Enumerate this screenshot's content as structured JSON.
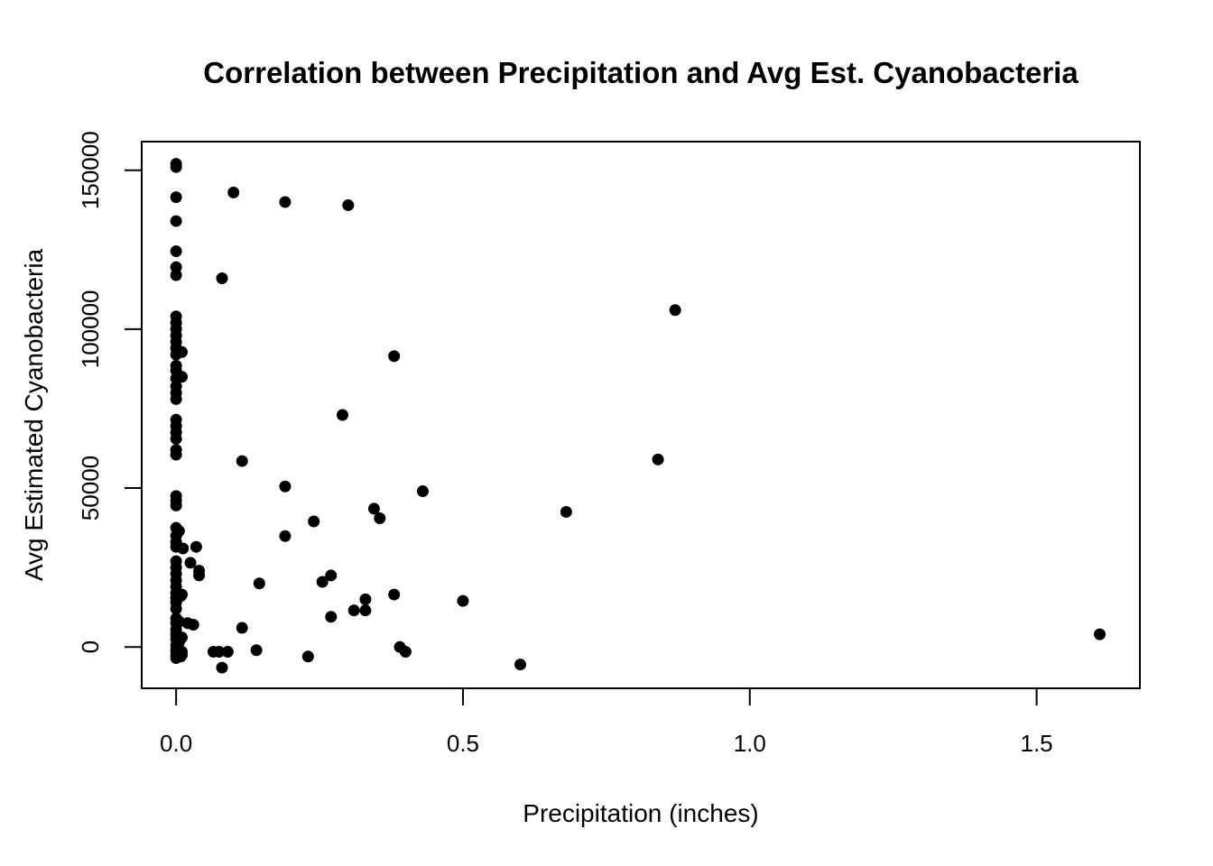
{
  "chart_data": {
    "type": "scatter",
    "title": "Correlation between Precipitation and Avg Est. Cyanobacteria",
    "xlabel": "Precipitation (inches)",
    "ylabel": "Avg Estimated Cyanobacteria",
    "xlim": [
      -0.06,
      1.68
    ],
    "ylim": [
      -13000,
      159000
    ],
    "xticks": [
      0.0,
      0.5,
      1.0,
      1.5
    ],
    "xtick_labels": [
      "0.0",
      "0.5",
      "1.0",
      "1.5"
    ],
    "yticks": [
      0,
      50000,
      100000,
      150000
    ],
    "ytick_labels": [
      "0",
      "50000",
      "100000",
      "150000"
    ],
    "grid": false,
    "legend": "none",
    "point_color": "#000000",
    "points": [
      {
        "x": 0.0,
        "y": 152000
      },
      {
        "x": 0.0,
        "y": 151000
      },
      {
        "x": 0.0,
        "y": 141500
      },
      {
        "x": 0.0,
        "y": 134000
      },
      {
        "x": 0.0,
        "y": 124500
      },
      {
        "x": 0.0,
        "y": 119500
      },
      {
        "x": 0.0,
        "y": 117000
      },
      {
        "x": 0.0,
        "y": 104000
      },
      {
        "x": 0.0,
        "y": 102000
      },
      {
        "x": 0.0,
        "y": 100000
      },
      {
        "x": 0.0,
        "y": 98000
      },
      {
        "x": 0.0,
        "y": 96000
      },
      {
        "x": 0.0,
        "y": 94000
      },
      {
        "x": 0.0,
        "y": 92000
      },
      {
        "x": 0.0,
        "y": 88500
      },
      {
        "x": 0.0,
        "y": 87000
      },
      {
        "x": 0.0,
        "y": 84500
      },
      {
        "x": 0.0,
        "y": 82000
      },
      {
        "x": 0.0,
        "y": 80000
      },
      {
        "x": 0.0,
        "y": 78000
      },
      {
        "x": 0.0,
        "y": 71500
      },
      {
        "x": 0.0,
        "y": 69500
      },
      {
        "x": 0.0,
        "y": 67500
      },
      {
        "x": 0.0,
        "y": 65500
      },
      {
        "x": 0.0,
        "y": 62000
      },
      {
        "x": 0.0,
        "y": 60500
      },
      {
        "x": 0.0,
        "y": 47500
      },
      {
        "x": 0.0,
        "y": 46000
      },
      {
        "x": 0.0,
        "y": 44500
      },
      {
        "x": 0.0,
        "y": 37500
      },
      {
        "x": 0.0,
        "y": 35000
      },
      {
        "x": 0.0,
        "y": 33000
      },
      {
        "x": 0.0,
        "y": 31500
      },
      {
        "x": 0.0,
        "y": 27000
      },
      {
        "x": 0.0,
        "y": 25000
      },
      {
        "x": 0.0,
        "y": 23000
      },
      {
        "x": 0.0,
        "y": 21000
      },
      {
        "x": 0.0,
        "y": 19000
      },
      {
        "x": 0.0,
        "y": 17000
      },
      {
        "x": 0.0,
        "y": 15500
      },
      {
        "x": 0.0,
        "y": 14000
      },
      {
        "x": 0.0,
        "y": 12000
      },
      {
        "x": 0.0,
        "y": 9000
      },
      {
        "x": 0.0,
        "y": 7500
      },
      {
        "x": 0.0,
        "y": 5500
      },
      {
        "x": 0.0,
        "y": 4000
      },
      {
        "x": 0.0,
        "y": 2500
      },
      {
        "x": 0.0,
        "y": 500
      },
      {
        "x": 0.0,
        "y": -1000
      },
      {
        "x": 0.0,
        "y": -2500
      },
      {
        "x": 0.0,
        "y": -3500
      },
      {
        "x": 0.005,
        "y": 36500
      },
      {
        "x": 0.005,
        "y": 8000
      },
      {
        "x": 0.005,
        "y": 1500
      },
      {
        "x": 0.005,
        "y": -2000
      },
      {
        "x": 0.008,
        "y": 16000
      },
      {
        "x": 0.008,
        "y": -3000
      },
      {
        "x": 0.01,
        "y": 92800
      },
      {
        "x": 0.01,
        "y": 85000
      },
      {
        "x": 0.01,
        "y": 16500
      },
      {
        "x": 0.01,
        "y": 3000
      },
      {
        "x": 0.01,
        "y": -1500
      },
      {
        "x": 0.01,
        "y": -2500
      },
      {
        "x": 0.012,
        "y": 31000
      },
      {
        "x": 0.02,
        "y": 7500
      },
      {
        "x": 0.025,
        "y": 26500
      },
      {
        "x": 0.03,
        "y": 7000
      },
      {
        "x": 0.035,
        "y": 31500
      },
      {
        "x": 0.04,
        "y": 24000
      },
      {
        "x": 0.04,
        "y": 22500
      },
      {
        "x": 0.065,
        "y": -1500
      },
      {
        "x": 0.075,
        "y": -1500
      },
      {
        "x": 0.08,
        "y": 116000
      },
      {
        "x": 0.08,
        "y": -6500
      },
      {
        "x": 0.09,
        "y": -1500
      },
      {
        "x": 0.1,
        "y": 143000
      },
      {
        "x": 0.115,
        "y": 6000
      },
      {
        "x": 0.115,
        "y": 58500
      },
      {
        "x": 0.14,
        "y": -1000
      },
      {
        "x": 0.145,
        "y": 20000
      },
      {
        "x": 0.19,
        "y": 34900
      },
      {
        "x": 0.19,
        "y": 50500
      },
      {
        "x": 0.19,
        "y": 140000
      },
      {
        "x": 0.23,
        "y": -3000
      },
      {
        "x": 0.24,
        "y": 39500
      },
      {
        "x": 0.255,
        "y": 20500
      },
      {
        "x": 0.27,
        "y": 22500
      },
      {
        "x": 0.27,
        "y": 9500
      },
      {
        "x": 0.29,
        "y": 73000
      },
      {
        "x": 0.3,
        "y": 139000
      },
      {
        "x": 0.31,
        "y": 11500
      },
      {
        "x": 0.33,
        "y": 11500
      },
      {
        "x": 0.33,
        "y": 15000
      },
      {
        "x": 0.345,
        "y": 43500
      },
      {
        "x": 0.355,
        "y": 40500
      },
      {
        "x": 0.38,
        "y": 91500
      },
      {
        "x": 0.38,
        "y": 16500
      },
      {
        "x": 0.39,
        "y": 0
      },
      {
        "x": 0.4,
        "y": -1500
      },
      {
        "x": 0.43,
        "y": 49000
      },
      {
        "x": 0.5,
        "y": 14500
      },
      {
        "x": 0.6,
        "y": -5500
      },
      {
        "x": 0.68,
        "y": 42500
      },
      {
        "x": 0.84,
        "y": 59000
      },
      {
        "x": 0.87,
        "y": 106000
      },
      {
        "x": 1.61,
        "y": 4000
      }
    ]
  }
}
